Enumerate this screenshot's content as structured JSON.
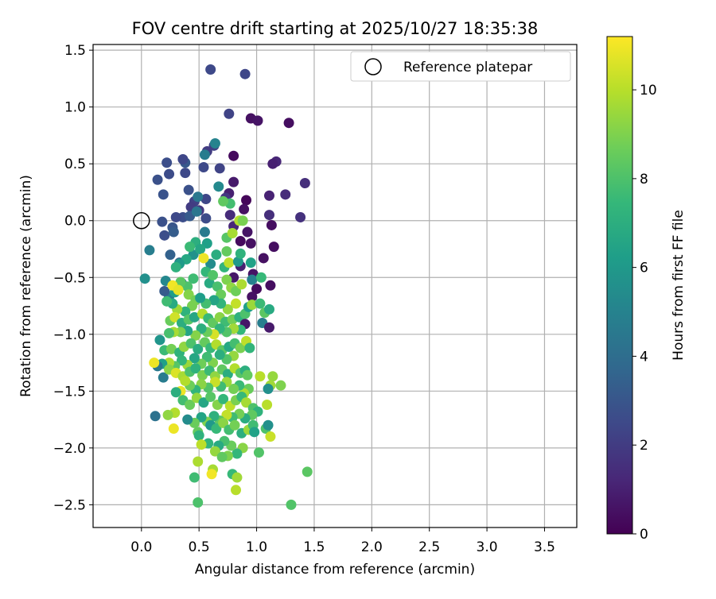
{
  "chart_data": {
    "type": "scatter",
    "title": "FOV centre drift starting at 2025/10/27 18:35:38",
    "xlabel": "Angular distance from reference (arcmin)",
    "ylabel": "Rotation from reference (arcmin)",
    "xlim": [
      -0.42,
      3.78
    ],
    "ylim": [
      -2.7,
      1.55
    ],
    "xticks": [
      0.0,
      0.5,
      1.0,
      1.5,
      2.0,
      2.5,
      3.0,
      3.5
    ],
    "xtick_labels": [
      "0.0",
      "0.5",
      "1.0",
      "1.5",
      "2.0",
      "2.5",
      "3.0",
      "3.5"
    ],
    "yticks": [
      1.5,
      1.0,
      0.5,
      0.0,
      -0.5,
      -1.0,
      -1.5,
      -2.0,
      -2.5
    ],
    "ytick_labels": [
      "1.5",
      "1.0",
      "0.5",
      "0.0",
      "−0.5",
      "−1.0",
      "−1.5",
      "−2.0",
      "−2.5"
    ],
    "grid": true,
    "legend": {
      "position": "top-right",
      "entries": [
        "Reference platepar"
      ]
    },
    "reference_point": {
      "label": "Reference platepar",
      "x": 0.0,
      "y": 0.0
    },
    "colorbar": {
      "label": "Hours from first FF file",
      "range": [
        0,
        11.2
      ],
      "ticks": [
        0,
        2,
        4,
        6,
        8,
        10
      ],
      "tick_labels": [
        "0",
        "2",
        "4",
        "6",
        "8",
        "10"
      ],
      "colormap": "viridis",
      "colormap_stops": [
        "#440154",
        "#482878",
        "#3e4989",
        "#31688e",
        "#26828e",
        "#1f9e89",
        "#35b779",
        "#6ece58",
        "#b5de2b",
        "#fde725"
      ]
    },
    "points": [
      [
        0.6,
        1.33,
        2.5
      ],
      [
        0.9,
        1.29,
        2.4
      ],
      [
        0.76,
        0.94,
        2.3
      ],
      [
        0.95,
        0.9,
        0.5
      ],
      [
        1.01,
        0.88,
        0.6
      ],
      [
        1.28,
        0.86,
        0.4
      ],
      [
        0.8,
        0.57,
        0.3
      ],
      [
        1.17,
        0.52,
        1.2
      ],
      [
        1.14,
        0.5,
        1.0
      ],
      [
        1.42,
        0.33,
        1.5
      ],
      [
        1.11,
        0.22,
        1.1
      ],
      [
        1.25,
        0.23,
        1.4
      ],
      [
        1.38,
        0.03,
        1.6
      ],
      [
        1.13,
        -0.04,
        0.4
      ],
      [
        1.11,
        0.05,
        1.5
      ],
      [
        0.91,
        0.18,
        0.2
      ],
      [
        0.89,
        0.1,
        0.5
      ],
      [
        0.92,
        -0.1,
        0.6
      ],
      [
        0.86,
        -0.18,
        0.3
      ],
      [
        0.95,
        -0.2,
        0.5
      ],
      [
        1.15,
        -0.23,
        0.4
      ],
      [
        1.06,
        -0.33,
        0.5
      ],
      [
        0.97,
        -0.47,
        0.6
      ],
      [
        1.0,
        -0.6,
        0.3
      ],
      [
        1.12,
        -0.57,
        0.4
      ],
      [
        0.96,
        -0.67,
        0.5
      ],
      [
        0.8,
        -0.5,
        0.7
      ],
      [
        0.86,
        -0.4,
        1.0
      ],
      [
        0.8,
        -0.05,
        1.2
      ],
      [
        0.77,
        0.05,
        1.4
      ],
      [
        0.8,
        0.34,
        0.8
      ],
      [
        0.76,
        0.24,
        1.0
      ],
      [
        0.73,
        0.2,
        1.8
      ],
      [
        0.63,
        0.66,
        2.2
      ],
      [
        0.57,
        0.61,
        2.0
      ],
      [
        0.54,
        0.47,
        2.5
      ],
      [
        0.68,
        0.46,
        2.3
      ],
      [
        0.38,
        0.51,
        3.1
      ],
      [
        0.36,
        0.54,
        2.4
      ],
      [
        0.22,
        0.51,
        2.7
      ],
      [
        0.14,
        0.36,
        2.8
      ],
      [
        0.24,
        0.41,
        2.6
      ],
      [
        0.38,
        0.42,
        2.5
      ],
      [
        0.41,
        0.27,
        2.8
      ],
      [
        0.46,
        0.17,
        2.2
      ],
      [
        0.56,
        0.19,
        2.4
      ],
      [
        0.19,
        0.23,
        2.9
      ],
      [
        0.43,
        0.12,
        2.0
      ],
      [
        0.5,
        0.09,
        1.8
      ],
      [
        0.56,
        0.02,
        2.6
      ],
      [
        0.36,
        0.03,
        2.7
      ],
      [
        0.3,
        0.03,
        2.5
      ],
      [
        0.42,
        0.04,
        3.2
      ],
      [
        0.18,
        -0.01,
        2.8
      ],
      [
        0.27,
        -0.06,
        3.0
      ],
      [
        0.2,
        -0.13,
        2.7
      ],
      [
        0.28,
        -0.1,
        3.3
      ],
      [
        0.07,
        -0.26,
        4.8
      ],
      [
        0.25,
        -0.3,
        3.5
      ],
      [
        0.33,
        -0.37,
        3.6
      ],
      [
        0.03,
        -0.51,
        5.6
      ],
      [
        0.21,
        -0.53,
        5.2
      ],
      [
        0.35,
        -0.55,
        4.3
      ],
      [
        0.24,
        -0.67,
        4.8
      ],
      [
        0.29,
        -0.63,
        6.2
      ],
      [
        0.2,
        -0.62,
        3.2
      ],
      [
        0.49,
        0.21,
        4.5
      ],
      [
        0.48,
        0.08,
        4.4
      ],
      [
        0.55,
        0.58,
        4.7
      ],
      [
        0.64,
        0.68,
        5.0
      ],
      [
        0.67,
        0.3,
        5.3
      ],
      [
        0.77,
        0.15,
        7.8
      ],
      [
        0.71,
        0.17,
        8.4
      ],
      [
        0.74,
        -0.15,
        8.2
      ],
      [
        0.79,
        -0.11,
        9.7
      ],
      [
        0.85,
        0.0,
        9.9
      ],
      [
        0.88,
        0.0,
        8.9
      ],
      [
        0.55,
        -0.1,
        4.6
      ],
      [
        0.57,
        -0.2,
        6.3
      ],
      [
        0.45,
        -0.3,
        5.7
      ],
      [
        0.47,
        -0.19,
        7.0
      ],
      [
        0.51,
        -0.25,
        6.6
      ],
      [
        0.6,
        -0.38,
        5.4
      ],
      [
        0.65,
        -0.3,
        6.9
      ],
      [
        0.72,
        -0.41,
        7.3
      ],
      [
        0.74,
        -0.27,
        8.5
      ],
      [
        0.76,
        -0.37,
        10.1
      ],
      [
        0.84,
        -0.36,
        6.0
      ],
      [
        0.86,
        -0.29,
        7.2
      ],
      [
        0.95,
        -0.37,
        6.4
      ],
      [
        0.96,
        -0.52,
        4.9
      ],
      [
        1.04,
        -0.5,
        7.5
      ],
      [
        0.54,
        -0.33,
        10.9
      ],
      [
        0.42,
        -0.23,
        7.6
      ],
      [
        0.39,
        -0.34,
        6.7
      ],
      [
        0.33,
        -0.38,
        6.1
      ],
      [
        0.3,
        -0.41,
        7.1
      ],
      [
        0.45,
        -0.51,
        7.7
      ],
      [
        0.4,
        -0.58,
        8.0
      ],
      [
        0.34,
        -0.54,
        8.3
      ],
      [
        0.27,
        -0.57,
        11.0
      ],
      [
        0.32,
        -0.61,
        10.8
      ],
      [
        0.41,
        -0.65,
        9.1
      ],
      [
        0.47,
        -0.7,
        8.8
      ],
      [
        0.56,
        -0.45,
        7.4
      ],
      [
        0.59,
        -0.55,
        6.8
      ],
      [
        0.62,
        -0.48,
        8.1
      ],
      [
        0.66,
        -0.58,
        7.9
      ],
      [
        0.69,
        -0.65,
        8.6
      ],
      [
        0.74,
        -0.52,
        9.0
      ],
      [
        0.78,
        -0.59,
        9.3
      ],
      [
        0.82,
        -0.62,
        8.7
      ],
      [
        0.87,
        -0.56,
        9.8
      ],
      [
        0.82,
        -0.73,
        10.2
      ],
      [
        0.75,
        -0.78,
        9.4
      ],
      [
        0.69,
        -0.73,
        7.3
      ],
      [
        0.63,
        -0.7,
        6.5
      ],
      [
        0.56,
        -0.73,
        7.8
      ],
      [
        0.51,
        -0.68,
        6.2
      ],
      [
        0.44,
        -0.75,
        8.9
      ],
      [
        0.38,
        -0.8,
        7.2
      ],
      [
        0.31,
        -0.78,
        9.6
      ],
      [
        0.27,
        -0.73,
        6.8
      ],
      [
        0.22,
        -0.71,
        7.7
      ],
      [
        0.25,
        -0.88,
        8.6
      ],
      [
        0.29,
        -0.85,
        10.4
      ],
      [
        0.35,
        -0.9,
        7.0
      ],
      [
        0.41,
        -0.87,
        8.2
      ],
      [
        0.46,
        -0.85,
        6.6
      ],
      [
        0.53,
        -0.82,
        9.9
      ],
      [
        0.58,
        -0.86,
        7.5
      ],
      [
        0.62,
        -0.9,
        8.4
      ],
      [
        0.68,
        -0.85,
        9.2
      ],
      [
        0.73,
        -0.89,
        7.7
      ],
      [
        0.79,
        -0.87,
        8.8
      ],
      [
        0.85,
        -0.85,
        7.1
      ],
      [
        0.9,
        -0.82,
        8.0
      ],
      [
        0.93,
        -0.76,
        6.3
      ],
      [
        0.96,
        -0.74,
        9.5
      ],
      [
        1.03,
        -0.73,
        7.6
      ],
      [
        1.07,
        -0.81,
        8.3
      ],
      [
        1.11,
        -0.78,
        6.8
      ],
      [
        1.05,
        -0.9,
        4.8
      ],
      [
        1.11,
        -0.94,
        0.8
      ],
      [
        0.9,
        -0.91,
        0.7
      ],
      [
        0.86,
        -0.96,
        7.4
      ],
      [
        0.8,
        -0.95,
        9.6
      ],
      [
        0.74,
        -0.98,
        8.1
      ],
      [
        0.68,
        -0.95,
        7.3
      ],
      [
        0.63,
        -1.0,
        10.5
      ],
      [
        0.57,
        -0.98,
        8.6
      ],
      [
        0.52,
        -0.95,
        7.0
      ],
      [
        0.47,
        -1.01,
        9.1
      ],
      [
        0.4,
        -0.97,
        6.5
      ],
      [
        0.34,
        -0.98,
        8.9
      ],
      [
        0.28,
        -0.98,
        9.7
      ],
      [
        0.24,
        -0.99,
        7.9
      ],
      [
        0.16,
        -1.05,
        5.8
      ],
      [
        0.2,
        -1.14,
        7.6
      ],
      [
        0.26,
        -1.13,
        8.8
      ],
      [
        0.33,
        -1.16,
        7.2
      ],
      [
        0.37,
        -1.11,
        9.3
      ],
      [
        0.43,
        -1.08,
        8.0
      ],
      [
        0.49,
        -1.13,
        6.9
      ],
      [
        0.55,
        -1.07,
        8.5
      ],
      [
        0.6,
        -1.12,
        7.5
      ],
      [
        0.65,
        -1.09,
        9.9
      ],
      [
        0.7,
        -1.14,
        8.3
      ],
      [
        0.76,
        -1.11,
        6.7
      ],
      [
        0.81,
        -1.08,
        7.8
      ],
      [
        0.86,
        -1.12,
        8.9
      ],
      [
        0.91,
        -1.06,
        10.1
      ],
      [
        0.94,
        -1.12,
        7.3
      ],
      [
        0.8,
        -1.19,
        9.4
      ],
      [
        0.74,
        -1.22,
        8.1
      ],
      [
        0.68,
        -1.18,
        7.0
      ],
      [
        0.62,
        -1.25,
        9.0
      ],
      [
        0.57,
        -1.2,
        7.7
      ],
      [
        0.52,
        -1.26,
        8.7
      ],
      [
        0.46,
        -1.21,
        6.6
      ],
      [
        0.4,
        -1.27,
        9.5
      ],
      [
        0.35,
        -1.23,
        7.4
      ],
      [
        0.29,
        -1.28,
        8.2
      ],
      [
        0.24,
        -1.25,
        9.8
      ],
      [
        0.18,
        -1.26,
        6.3
      ],
      [
        0.14,
        -1.28,
        4.5
      ],
      [
        0.11,
        -1.25,
        10.9
      ],
      [
        0.19,
        -1.38,
        4.7
      ],
      [
        0.24,
        -1.31,
        9.2
      ],
      [
        0.3,
        -1.34,
        10.6
      ],
      [
        0.36,
        -1.37,
        9.7
      ],
      [
        0.42,
        -1.33,
        8.0
      ],
      [
        0.47,
        -1.3,
        7.2
      ],
      [
        0.53,
        -1.36,
        8.9
      ],
      [
        0.59,
        -1.32,
        7.6
      ],
      [
        0.64,
        -1.37,
        9.3
      ],
      [
        0.7,
        -1.31,
        8.4
      ],
      [
        0.75,
        -1.35,
        6.9
      ],
      [
        0.81,
        -1.3,
        9.9
      ],
      [
        0.86,
        -1.34,
        8.2
      ],
      [
        0.9,
        -1.32,
        7.0
      ],
      [
        0.92,
        -1.36,
        8.5
      ],
      [
        1.03,
        -1.37,
        10.0
      ],
      [
        1.14,
        -1.37,
        9.4
      ],
      [
        1.21,
        -1.45,
        9.0
      ],
      [
        1.12,
        -1.45,
        9.6
      ],
      [
        1.1,
        -1.48,
        5.6
      ],
      [
        0.93,
        -1.48,
        8.6
      ],
      [
        0.89,
        -1.52,
        9.8
      ],
      [
        0.85,
        -1.45,
        7.6
      ],
      [
        0.8,
        -1.48,
        8.8
      ],
      [
        0.74,
        -1.42,
        9.5
      ],
      [
        0.69,
        -1.46,
        7.7
      ],
      [
        0.64,
        -1.42,
        10.3
      ],
      [
        0.58,
        -1.47,
        8.1
      ],
      [
        0.52,
        -1.44,
        9.2
      ],
      [
        0.47,
        -1.49,
        7.3
      ],
      [
        0.42,
        -1.45,
        8.7
      ],
      [
        0.38,
        -1.41,
        9.9
      ],
      [
        0.34,
        -1.5,
        10.9
      ],
      [
        0.3,
        -1.51,
        7.0
      ],
      [
        0.36,
        -1.58,
        7.8
      ],
      [
        0.42,
        -1.62,
        8.6
      ],
      [
        0.48,
        -1.56,
        9.4
      ],
      [
        0.54,
        -1.6,
        6.6
      ],
      [
        0.6,
        -1.55,
        8.2
      ],
      [
        0.66,
        -1.62,
        9.1
      ],
      [
        0.71,
        -1.57,
        7.4
      ],
      [
        0.77,
        -1.63,
        10.1
      ],
      [
        0.82,
        -1.58,
        8.9
      ],
      [
        0.87,
        -1.55,
        7.5
      ],
      [
        0.91,
        -1.6,
        9.7
      ],
      [
        0.97,
        -1.65,
        8.0
      ],
      [
        1.01,
        -1.68,
        7.2
      ],
      [
        1.09,
        -1.62,
        10.0
      ],
      [
        0.96,
        -1.71,
        8.4
      ],
      [
        0.9,
        -1.74,
        6.9
      ],
      [
        0.85,
        -1.7,
        8.8
      ],
      [
        0.79,
        -1.73,
        7.7
      ],
      [
        0.74,
        -1.71,
        10.2
      ],
      [
        0.68,
        -1.76,
        8.3
      ],
      [
        0.63,
        -1.72,
        7.1
      ],
      [
        0.57,
        -1.77,
        9.0
      ],
      [
        0.52,
        -1.73,
        6.5
      ],
      [
        0.46,
        -1.78,
        8.6
      ],
      [
        0.4,
        -1.75,
        5.4
      ],
      [
        0.29,
        -1.69,
        9.9
      ],
      [
        0.23,
        -1.71,
        9.3
      ],
      [
        0.28,
        -1.83,
        10.9
      ],
      [
        0.12,
        -1.72,
        4.2
      ],
      [
        0.49,
        -1.86,
        8.5
      ],
      [
        0.5,
        -1.89,
        7.2
      ],
      [
        0.6,
        -1.8,
        6.0
      ],
      [
        0.65,
        -1.83,
        7.5
      ],
      [
        0.71,
        -1.78,
        9.2
      ],
      [
        0.76,
        -1.84,
        7.8
      ],
      [
        0.81,
        -1.8,
        8.8
      ],
      [
        0.87,
        -1.87,
        7.0
      ],
      [
        0.93,
        -1.84,
        9.5
      ],
      [
        0.97,
        -1.8,
        7.7
      ],
      [
        0.98,
        -1.86,
        6.4
      ],
      [
        1.08,
        -1.83,
        8.0
      ],
      [
        1.1,
        -1.8,
        5.6
      ],
      [
        1.12,
        -1.9,
        10.3
      ],
      [
        1.02,
        -2.04,
        8.1
      ],
      [
        0.88,
        -2.0,
        9.2
      ],
      [
        0.83,
        -2.05,
        7.4
      ],
      [
        0.78,
        -1.98,
        8.6
      ],
      [
        0.72,
        -1.94,
        7.9
      ],
      [
        0.67,
        -1.98,
        6.8
      ],
      [
        0.64,
        -2.03,
        9.4
      ],
      [
        0.58,
        -1.96,
        7.3
      ],
      [
        0.52,
        -1.97,
        10.1
      ],
      [
        0.49,
        -2.12,
        9.8
      ],
      [
        0.75,
        -2.07,
        9.0
      ],
      [
        0.7,
        -2.08,
        8.4
      ],
      [
        0.79,
        -2.23,
        7.5
      ],
      [
        0.62,
        -2.19,
        9.7
      ],
      [
        0.61,
        -2.23,
        11.0
      ],
      [
        0.83,
        -2.26,
        9.6
      ],
      [
        0.82,
        -2.37,
        10.0
      ],
      [
        0.46,
        -2.26,
        7.7
      ],
      [
        0.49,
        -2.48,
        8.0
      ],
      [
        1.44,
        -2.21,
        8.3
      ],
      [
        1.3,
        -2.5,
        8.1
      ]
    ]
  }
}
